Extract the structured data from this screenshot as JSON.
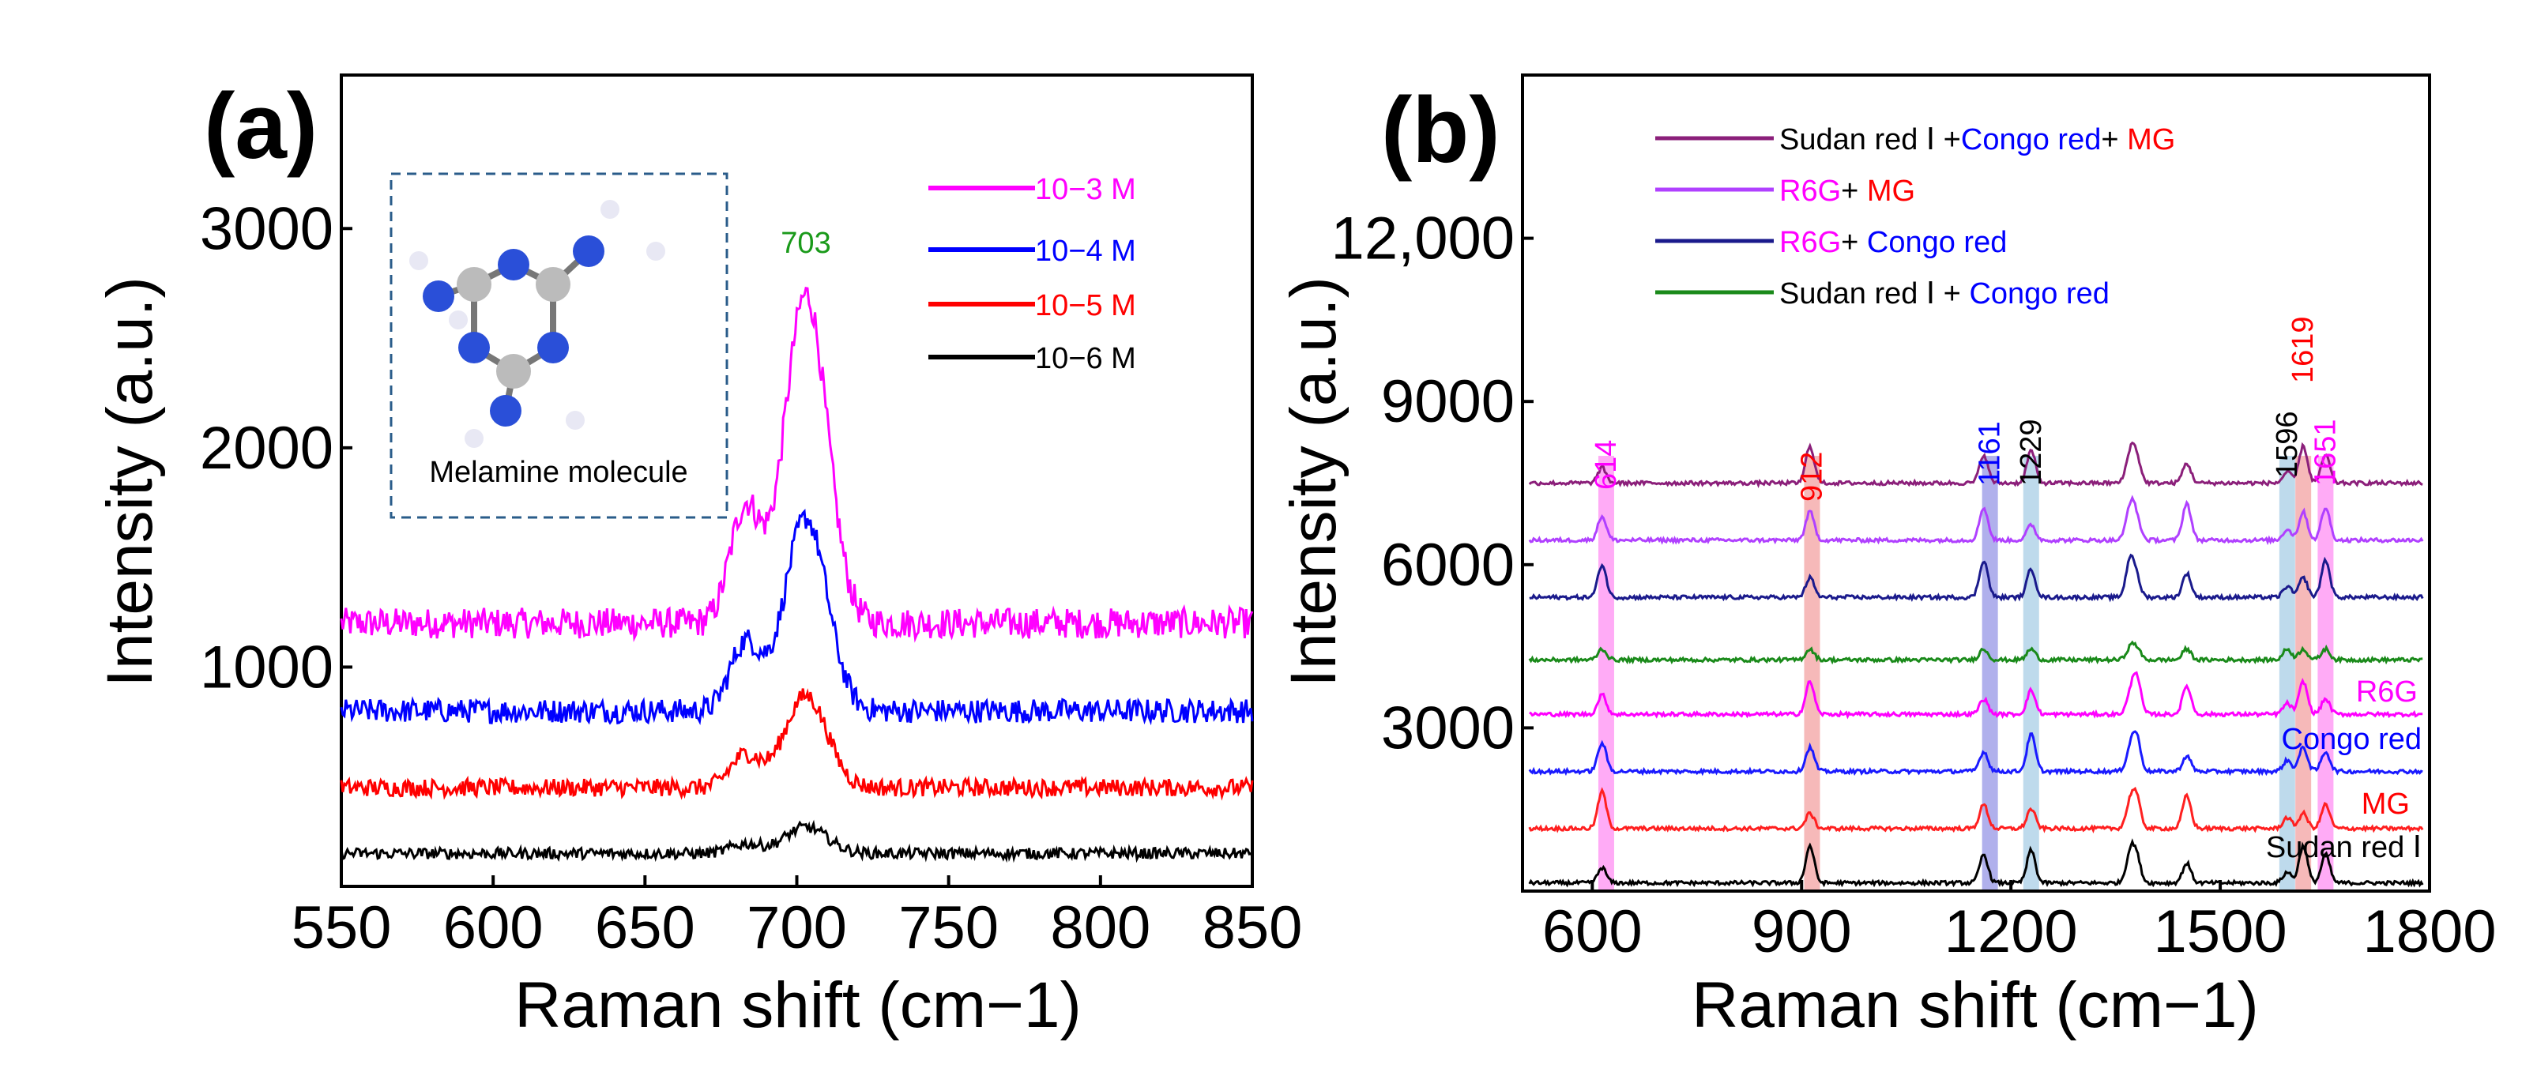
{
  "chart_data": [
    {
      "panel": "(a)",
      "type": "line",
      "xlabel": "Raman shift (cm−1)",
      "ylabel": "Intensity (a.u.)",
      "xlim": [
        550,
        850
      ],
      "ylim": [
        0,
        3700
      ],
      "xticks": [
        "550",
        "600",
        "650",
        "700",
        "750",
        "800",
        "850"
      ],
      "yticks": [
        "1000",
        "2000",
        "3000"
      ],
      "annotation": {
        "label": "703",
        "color": "#1a9a1a"
      },
      "inset_label": "Melamine molecule",
      "series": [
        {
          "name": "10−3 M",
          "color": "#ff00ff",
          "baseline": 1200,
          "peak": 1500,
          "noise": 70
        },
        {
          "name": "10−4 M",
          "color": "#0000ff",
          "baseline": 800,
          "peak": 880,
          "noise": 55
        },
        {
          "name": "10−5 M",
          "color": "#ff0000",
          "baseline": 450,
          "peak": 420,
          "noise": 40
        },
        {
          "name": "10−6 M",
          "color": "#000000",
          "baseline": 150,
          "peak": 120,
          "noise": 25
        }
      ]
    },
    {
      "panel": "(b)",
      "type": "line",
      "xlabel": "Raman shift (cm−1)",
      "ylabel": "Intensity (a.u.)",
      "xlim": [
        500,
        1800
      ],
      "ylim": [
        0,
        15000
      ],
      "xticks": [
        "600",
        "900",
        "1200",
        "1500",
        "1800"
      ],
      "yticks": [
        "3000",
        "6000",
        "9000",
        "12,000"
      ],
      "legend": [
        {
          "parts": [
            {
              "t": "Sudan red Ⅰ +",
              "c": "#000000"
            },
            {
              "t": "Congo red",
              "c": "#0000ff"
            },
            {
              "t": "+ ",
              "c": "#000000"
            },
            {
              "t": "MG",
              "c": "#ff0000"
            }
          ],
          "line": "#8b1f7a"
        },
        {
          "parts": [
            {
              "t": "R6G",
              "c": "#ff00ff"
            },
            {
              "t": "+ ",
              "c": "#000000"
            },
            {
              "t": "MG",
              "c": "#ff0000"
            }
          ],
          "line": "#b040ff"
        },
        {
          "parts": [
            {
              "t": "R6G",
              "c": "#ff00ff"
            },
            {
              "t": "+ ",
              "c": "#000000"
            },
            {
              "t": "Congo red",
              "c": "#0000ff"
            }
          ],
          "line": "#1a1a8c"
        },
        {
          "parts": [
            {
              "t": "Sudan red Ⅰ + ",
              "c": "#000000"
            },
            {
              "t": "Congo red",
              "c": "#0000ff"
            }
          ],
          "line": "#1a8a1a"
        }
      ],
      "bands": [
        {
          "label": "614",
          "x": 620,
          "color": "#ff66ee",
          "label_color": "#ff00ff"
        },
        {
          "label": "912",
          "x": 915,
          "color": "#ee8080",
          "label_color": "#ff0000"
        },
        {
          "label": "1161",
          "x": 1170,
          "color": "#7070dd",
          "label_color": "#0000ff"
        },
        {
          "label": "1229",
          "x": 1229,
          "color": "#88bbdd",
          "label_color": "#000000"
        },
        {
          "label": "1596",
          "x": 1596,
          "color": "#88bbdd",
          "label_color": "#000000"
        },
        {
          "label": "1619",
          "x": 1619,
          "color": "#ee8080",
          "label_color": "#ff0000"
        },
        {
          "label": "1651",
          "x": 1651,
          "color": "#ff66ee",
          "label_color": "#ff00ff"
        }
      ],
      "series": [
        {
          "name": "Sudan red Ⅰ",
          "color": "#000000",
          "baseline": 150,
          "label_color": "#000000"
        },
        {
          "name": "MG",
          "color": "#ff2020",
          "baseline": 1150,
          "label_color": "#ff0000"
        },
        {
          "name": "Congo red",
          "color": "#1a1aff",
          "baseline": 2200,
          "label_color": "#0000ff"
        },
        {
          "name": "R6G",
          "color": "#ff00ff",
          "baseline": 3250,
          "label_color": "#ff00ff"
        },
        {
          "name": "Sudan red Ⅰ + Congo red",
          "color": "#1a8a1a",
          "baseline": 4250
        },
        {
          "name": "R6G+ Congo red",
          "color": "#1a1a8c",
          "baseline": 5400
        },
        {
          "name": "R6G+ MG",
          "color": "#b040ff",
          "baseline": 6450
        },
        {
          "name": "Sudan red Ⅰ +Congo red+ MG",
          "color": "#8b1f7a",
          "baseline": 7500
        }
      ]
    }
  ]
}
